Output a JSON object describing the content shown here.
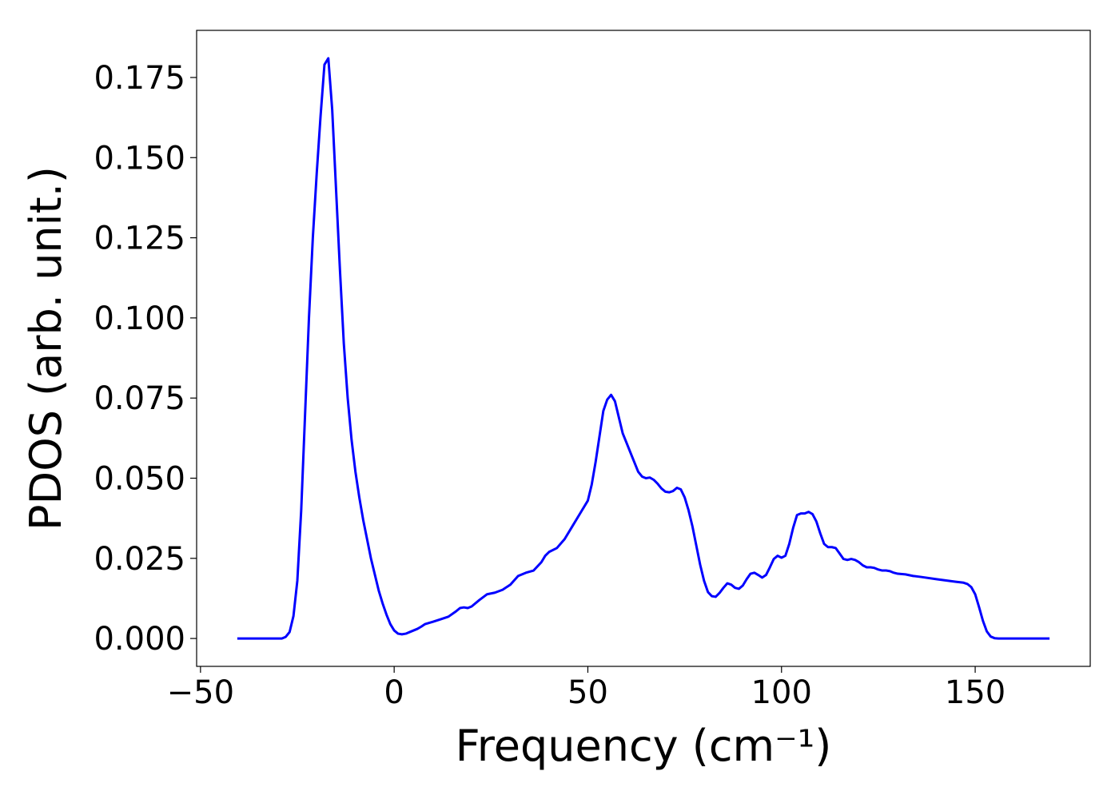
{
  "chart_data": {
    "type": "line",
    "xlabel": "Frequency (cm⁻¹)",
    "ylabel": "PDOS (arb. unit.)",
    "xlim": [
      -51,
      179.7
    ],
    "ylim": [
      -0.0087,
      0.1897
    ],
    "xticks": [
      {
        "value": -50,
        "label": "−50"
      },
      0,
      50,
      100,
      150
    ],
    "yticks": [
      {
        "value": 0,
        "label": "0.000"
      },
      0.025,
      {
        "value": 0.05,
        "label": "0.050"
      },
      0.075,
      {
        "value": 0.1,
        "label": "0.100"
      },
      0.125,
      {
        "value": 0.15,
        "label": "0.150"
      },
      0.175
    ],
    "grid": false,
    "x": [
      -40.5,
      -29,
      -28,
      -27,
      -26,
      -25,
      -24,
      -23,
      -22,
      -21,
      -20,
      -19,
      -18,
      -17,
      -16,
      -15,
      -14,
      -13,
      -12,
      -11,
      -10,
      -9,
      -8,
      -7,
      -6,
      -5,
      -4,
      -3,
      -2,
      -1,
      0,
      1,
      2,
      3,
      4,
      5,
      6,
      7,
      8,
      10,
      12,
      14,
      16,
      17,
      18,
      19,
      20,
      22,
      24,
      26,
      28,
      30,
      32,
      34,
      36,
      38,
      39,
      40,
      42,
      44,
      46,
      48,
      50,
      51,
      52,
      53,
      54,
      55,
      56,
      57,
      58,
      59,
      60,
      61,
      62,
      63,
      64,
      65,
      66,
      67,
      68,
      69,
      70,
      71,
      72,
      73,
      74,
      75,
      76,
      77,
      78,
      79,
      80,
      81,
      82,
      83,
      84,
      85,
      86,
      87,
      88,
      89,
      90,
      91,
      92,
      93,
      94,
      95,
      96,
      97,
      98,
      99,
      100,
      101,
      102,
      103,
      104,
      105,
      106,
      107,
      108,
      109,
      110,
      111,
      112,
      113,
      114,
      115,
      116,
      117,
      118,
      119,
      120,
      121,
      122,
      123,
      124,
      125,
      126,
      127,
      128,
      129,
      130,
      132,
      134,
      136,
      140,
      145,
      147,
      148,
      149,
      150,
      151,
      152,
      153,
      154,
      155,
      156,
      169.2
    ],
    "series": [
      {
        "color": "#0000ff",
        "values": [
          0,
          0,
          0.0005,
          0.002,
          0.007,
          0.018,
          0.04,
          0.07,
          0.1,
          0.125,
          0.145,
          0.163,
          0.179,
          0.181,
          0.165,
          0.14,
          0.115,
          0.092,
          0.075,
          0.062,
          0.052,
          0.044,
          0.037,
          0.031,
          0.025,
          0.02,
          0.015,
          0.011,
          0.0075,
          0.0045,
          0.0025,
          0.0015,
          0.0013,
          0.0015,
          0.002,
          0.0025,
          0.003,
          0.0037,
          0.0045,
          0.0052,
          0.006,
          0.0068,
          0.0085,
          0.0095,
          0.0097,
          0.0095,
          0.01,
          0.012,
          0.0138,
          0.0143,
          0.0152,
          0.0168,
          0.0195,
          0.0205,
          0.0212,
          0.0238,
          0.0258,
          0.027,
          0.0282,
          0.031,
          0.035,
          0.039,
          0.043,
          0.048,
          0.055,
          0.063,
          0.071,
          0.0745,
          0.076,
          0.074,
          0.069,
          0.064,
          0.061,
          0.058,
          0.055,
          0.052,
          0.0505,
          0.05,
          0.0502,
          0.0495,
          0.0483,
          0.0468,
          0.0458,
          0.0456,
          0.046,
          0.047,
          0.0465,
          0.044,
          0.04,
          0.035,
          0.029,
          0.023,
          0.018,
          0.0145,
          0.0132,
          0.013,
          0.0142,
          0.0158,
          0.0172,
          0.0168,
          0.0158,
          0.0155,
          0.0165,
          0.0185,
          0.0202,
          0.0205,
          0.0198,
          0.019,
          0.0198,
          0.0222,
          0.0248,
          0.0258,
          0.0252,
          0.0258,
          0.0295,
          0.0345,
          0.0385,
          0.039,
          0.039,
          0.0395,
          0.0388,
          0.0365,
          0.0328,
          0.0295,
          0.0285,
          0.0285,
          0.0282,
          0.0265,
          0.0248,
          0.0245,
          0.0248,
          0.0245,
          0.0238,
          0.0228,
          0.0222,
          0.0222,
          0.022,
          0.0215,
          0.0212,
          0.0212,
          0.021,
          0.0205,
          0.0202,
          0.02,
          0.0195,
          0.0192,
          0.0185,
          0.0177,
          0.0174,
          0.017,
          0.016,
          0.0138,
          0.0098,
          0.0055,
          0.0022,
          0.0006,
          0.0001,
          0,
          0
        ]
      }
    ]
  }
}
